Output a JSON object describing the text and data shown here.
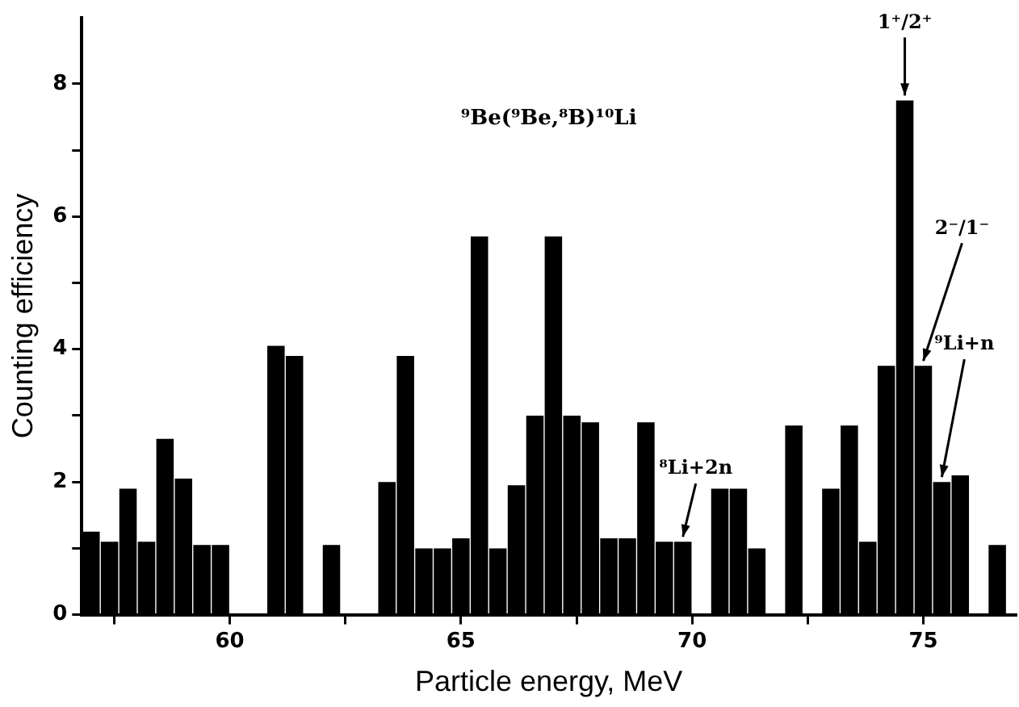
{
  "chart_data": {
    "type": "histogram",
    "xlabel": "Particle energy, MeV",
    "ylabel": "Counting efficiency",
    "bins": [
      56.8,
      57.2,
      57.6,
      58,
      58.4,
      58.8,
      59.2,
      59.6,
      60,
      60.4,
      60.8,
      61.2,
      61.6,
      62,
      62.4,
      62.8,
      63.2,
      63.6,
      64,
      64.4,
      64.8,
      65.2,
      65.6,
      66,
      66.4,
      66.8,
      67.2,
      67.6,
      68,
      68.4,
      68.8,
      69.2,
      69.6,
      70,
      70.4,
      70.8,
      71.2,
      71.6,
      72,
      72.4,
      72.8,
      73.2,
      73.6,
      74,
      74.4,
      74.8,
      75.2,
      75.6,
      76,
      76.4,
      76.8
    ],
    "values": [
      1.25,
      1.1,
      1.9,
      1.1,
      2.65,
      2.05,
      1.05,
      1.05,
      0,
      0,
      4.05,
      3.9,
      0,
      1.05,
      0,
      0,
      2.0,
      3.9,
      1.0,
      1.0,
      1.15,
      5.7,
      1.0,
      1.95,
      3.0,
      5.7,
      3.0,
      2.9,
      1.15,
      1.15,
      2.9,
      1.1,
      1.1,
      0,
      1.9,
      1.9,
      1.0,
      0,
      2.85,
      0,
      1.9,
      2.85,
      1.1,
      3.75,
      7.75,
      3.75,
      2.0,
      2.1,
      0,
      1.05
    ],
    "color": "#000000",
    "xlim": [
      56.8,
      77
    ],
    "xticks": [
      {
        "value": 57.5,
        "label": null
      },
      60,
      {
        "value": 62.5,
        "label": null
      },
      65,
      {
        "value": 67.5,
        "label": null
      },
      70,
      {
        "value": 72.5,
        "label": null
      },
      75
    ],
    "ylim": [
      0,
      9
    ],
    "yticks": [
      0,
      {
        "value": 1,
        "label": null
      },
      2,
      {
        "value": 3,
        "label": null
      },
      4,
      {
        "value": 5,
        "label": null
      },
      6,
      {
        "value": 7,
        "label": null
      },
      8
    ],
    "grid": false,
    "annotations": [
      "⁹Be(⁹Be,⁸B)¹⁰Li",
      {
        "text": "1⁺/2⁺",
        "x": 74.6,
        "y": 7.75
      },
      {
        "text": "2⁻/1⁻",
        "x": 75.0,
        "y": 3.75
      },
      {
        "text": "⁹Li+n",
        "x": 75.4,
        "y": 2.0
      },
      {
        "text": "⁸Li+2n",
        "x": 69.8,
        "y": 1.1
      }
    ]
  }
}
